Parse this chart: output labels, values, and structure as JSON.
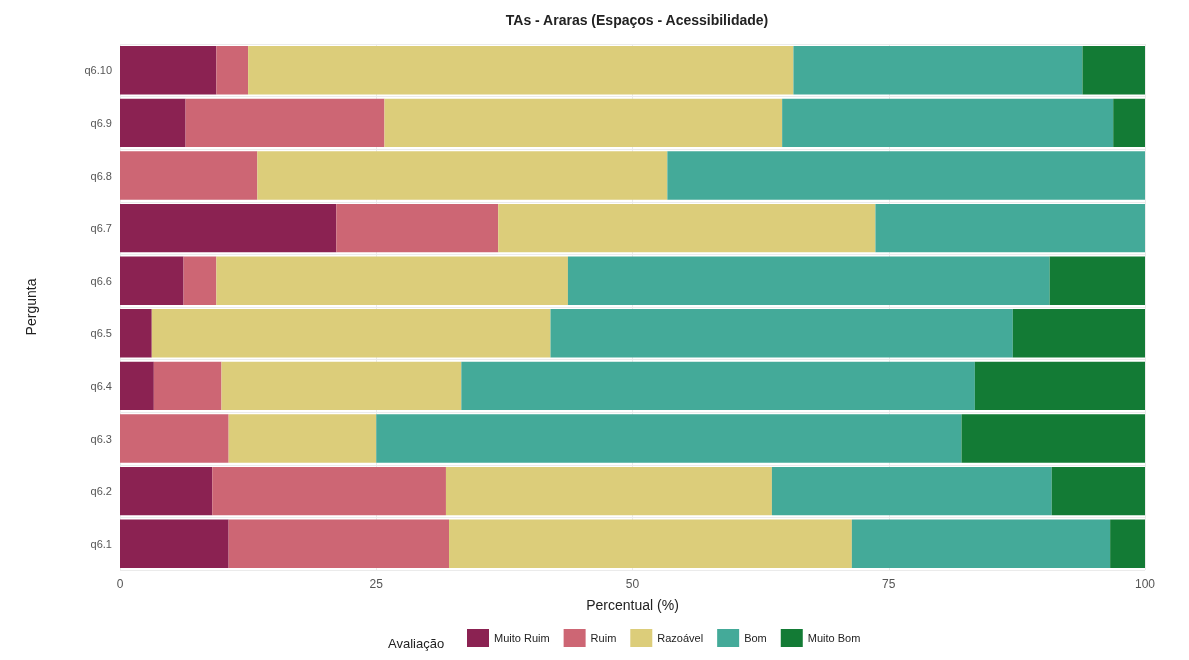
{
  "chart_data": {
    "type": "bar",
    "title": "TAs - Araras (Espaços - Acessibilidade)",
    "xlabel": "Percentual (%)",
    "ylabel": "Pergunta",
    "legend_title": "Avaliação",
    "orientation": "horizontal",
    "stacked": true,
    "categories": [
      "q6.10",
      "q6.9",
      "q6.8",
      "q6.7",
      "q6.6",
      "q6.5",
      "q6.4",
      "q6.3",
      "q6.2",
      "q6.1"
    ],
    "series": [
      {
        "name": "Muito Ruim",
        "color": "#8b2252",
        "values": [
          9.4,
          6.4,
          0,
          21.1,
          6.2,
          3.1,
          3.3,
          0,
          9.0,
          10.6
        ]
      },
      {
        "name": "Ruim",
        "color": "#cd6674",
        "values": [
          3.1,
          19.4,
          13.4,
          15.8,
          3.2,
          0,
          6.6,
          10.6,
          22.8,
          21.5
        ]
      },
      {
        "name": "Razoável",
        "color": "#dccd7a",
        "values": [
          53.2,
          38.8,
          40.0,
          36.8,
          34.3,
          38.9,
          23.4,
          14.4,
          31.8,
          39.3
        ]
      },
      {
        "name": "Bom",
        "color": "#44aa99",
        "values": [
          28.2,
          32.3,
          46.6,
          26.3,
          47.0,
          45.1,
          50.1,
          57.1,
          27.3,
          25.2
        ]
      },
      {
        "name": "Muito Bom",
        "color": "#137b35",
        "values": [
          6.1,
          3.1,
          0,
          0,
          9.3,
          12.9,
          16.6,
          17.9,
          9.1,
          3.4
        ]
      }
    ],
    "xlim": [
      0,
      100
    ],
    "xticks": [
      0,
      25,
      50,
      75,
      100
    ],
    "grid": true,
    "legend": "bottom"
  }
}
